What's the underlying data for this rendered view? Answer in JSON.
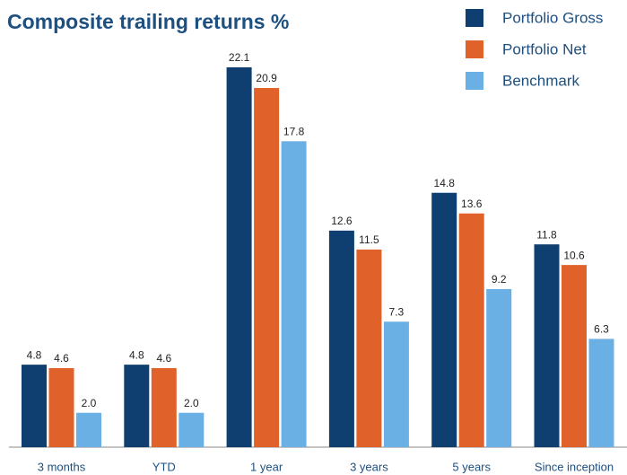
{
  "chart_data": {
    "type": "bar",
    "title": "Composite trailing returns %",
    "categories": [
      "3 months",
      "YTD",
      "1 year",
      "3 years",
      "5 years",
      "Since inception"
    ],
    "series": [
      {
        "name": "Portfolio Gross",
        "color": "#0f3e70",
        "values": [
          4.8,
          4.8,
          22.1,
          12.6,
          14.8,
          11.8
        ],
        "value_labels": [
          "4.8",
          "4.8",
          "22.1",
          "12.6",
          "14.8",
          "11.8"
        ]
      },
      {
        "name": "Portfolio Net",
        "color": "#e0622a",
        "values": [
          4.6,
          4.6,
          20.9,
          11.5,
          13.6,
          10.6
        ],
        "value_labels": [
          "4.6",
          "4.6",
          "20.9",
          "11.5",
          "13.6",
          "10.6"
        ]
      },
      {
        "name": "Benchmark",
        "color": "#6ab0e4",
        "values": [
          2.0,
          2.0,
          17.8,
          7.3,
          9.2,
          6.3
        ],
        "value_labels": [
          "2.0",
          "2.0",
          "17.8",
          "7.3",
          "9.2",
          "6.3"
        ]
      }
    ],
    "legend": "top-right"
  }
}
